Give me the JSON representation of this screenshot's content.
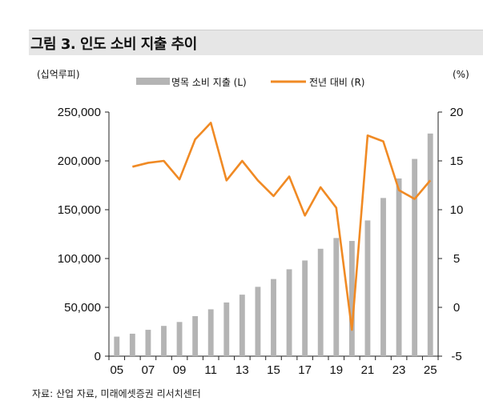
{
  "header": {
    "title": "그림 3. 인도 소비 지출 추이"
  },
  "footer": {
    "source": "자료: 산업 자료, 미래에셋증권 리서치센터"
  },
  "colors": {
    "bar": "#b4b4b4",
    "line": "#f08a24",
    "band": "#e6e6e6"
  },
  "chart_data": {
    "type": "bar+line",
    "title": "그림 3. 인도 소비 지출 추이",
    "left_axis_label": "(십억루피)",
    "right_axis_label": "(%)",
    "x": [
      2005,
      2006,
      2007,
      2008,
      2009,
      2010,
      2011,
      2012,
      2013,
      2014,
      2015,
      2016,
      2017,
      2018,
      2019,
      2020,
      2021,
      2022,
      2023,
      2024,
      2025
    ],
    "x_tick_labels": [
      "05",
      "07",
      "09",
      "11",
      "13",
      "15",
      "17",
      "19",
      "21",
      "23",
      "25"
    ],
    "y_left_ticks": [
      "250,000",
      "200,000",
      "150,000",
      "100,000",
      "50,000",
      "0"
    ],
    "y_right_ticks": [
      "20",
      "15",
      "10",
      "5",
      "0",
      "-5"
    ],
    "ylim_left": [
      0,
      250000
    ],
    "ylim_right": [
      -5,
      20
    ],
    "series": [
      {
        "name": "명목 소비 지출 (L)",
        "type": "bar",
        "axis": "left",
        "values": [
          20000,
          23000,
          27000,
          31000,
          35000,
          41000,
          48000,
          55000,
          63000,
          71000,
          79000,
          89000,
          98000,
          110000,
          121000,
          118000,
          139000,
          162000,
          182000,
          202000,
          228000
        ]
      },
      {
        "name": "전년 대비 (R)",
        "type": "line",
        "axis": "right",
        "values": [
          null,
          14.4,
          14.8,
          15.0,
          13.1,
          17.2,
          18.9,
          13.0,
          15.0,
          13.0,
          11.4,
          13.4,
          9.4,
          12.3,
          10.2,
          -2.3,
          17.6,
          17.0,
          12.0,
          11.1,
          13.0
        ]
      }
    ]
  }
}
